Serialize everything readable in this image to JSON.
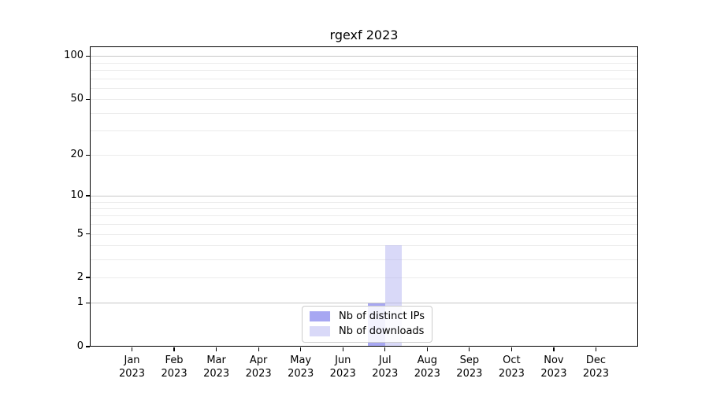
{
  "chart_data": {
    "type": "bar",
    "title": "rgexf 2023",
    "x": {
      "labels": [
        {
          "month": "Jan",
          "year": "2023"
        },
        {
          "month": "Feb",
          "year": "2023"
        },
        {
          "month": "Mar",
          "year": "2023"
        },
        {
          "month": "Apr",
          "year": "2023"
        },
        {
          "month": "May",
          "year": "2023"
        },
        {
          "month": "Jun",
          "year": "2023"
        },
        {
          "month": "Jul",
          "year": "2023"
        },
        {
          "month": "Aug",
          "year": "2023"
        },
        {
          "month": "Sep",
          "year": "2023"
        },
        {
          "month": "Oct",
          "year": "2023"
        },
        {
          "month": "Nov",
          "year": "2023"
        },
        {
          "month": "Dec",
          "year": "2023"
        }
      ]
    },
    "y_axis": {
      "scale": "log1p",
      "range": [
        0,
        117
      ],
      "tick_values": [
        0,
        1,
        2,
        5,
        10,
        20,
        50,
        100
      ],
      "major_gridlines": [
        1,
        10,
        100
      ],
      "minor_gridlines": [
        2,
        3,
        4,
        5,
        6,
        7,
        8,
        9,
        20,
        30,
        40,
        50,
        60,
        70,
        80,
        90
      ]
    },
    "series": [
      {
        "name": "Nb of distinct IPs",
        "color": "rgba(120,120,235,0.65)",
        "legend_hex": "#a7a7ef",
        "values": [
          0,
          0,
          0,
          0,
          0,
          0,
          1,
          0,
          0,
          0,
          0,
          0
        ]
      },
      {
        "name": "Nb of downloads",
        "color": "rgba(170,170,240,0.45)",
        "legend_hex": "#d8d8f6",
        "values": [
          0,
          0,
          0,
          0,
          0,
          0,
          4,
          0,
          0,
          0,
          0,
          0
        ]
      }
    ],
    "legend": {
      "position": "bottom-center"
    },
    "colors": {
      "major_grid": "#c6c6c6",
      "minor_grid": "#ebebeb",
      "axis": "#000000",
      "text": "#000000",
      "background": "#ffffff"
    }
  }
}
